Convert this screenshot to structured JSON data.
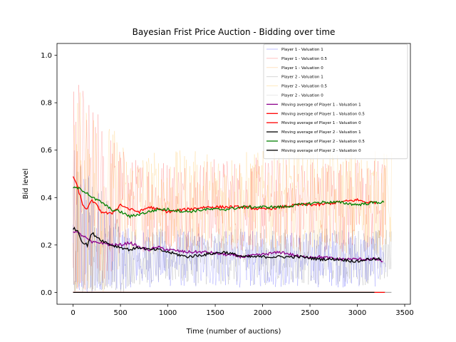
{
  "chart_data": {
    "type": "line",
    "title": "Bayesian Frist Price Auction - Bidding over time",
    "xlabel": "Time (number of auctions)",
    "ylabel": "Bid level",
    "xlim": [
      -170,
      3560
    ],
    "ylim": [
      -0.05,
      1.05
    ],
    "xticks": [
      0,
      500,
      1000,
      1500,
      2000,
      2500,
      3000,
      3500
    ],
    "yticks": [
      0.0,
      0.2,
      0.4,
      0.6,
      0.8,
      1.0
    ],
    "xtick_labels": [
      "0",
      "500",
      "1000",
      "1500",
      "2000",
      "2500",
      "3000",
      "3500"
    ],
    "ytick_labels": [
      "0.0",
      "0.2",
      "0.4",
      "0.6",
      "0.8",
      "1.0"
    ],
    "grid": false,
    "legend_position": "top-right",
    "series": [
      {
        "name": "Player 1 - Valuation 1",
        "color": "#0000ff",
        "kind": "raw",
        "center": 0.14,
        "spread": 0.12,
        "x_end": 3300
      },
      {
        "name": "Player 1 - Valuation 0.5",
        "color": "#ff0000",
        "kind": "raw",
        "center": 0.37,
        "spread": 0.2,
        "x_end": 3300
      },
      {
        "name": "Player 1 - Valuation 0",
        "color": "#ff8c00",
        "kind": "flat",
        "value": 0.0,
        "x_end": 3300
      },
      {
        "name": "Player 2 - Valuation 1",
        "color": "#555555",
        "kind": "raw",
        "center": 0.15,
        "spread": 0.12,
        "x_end": 3360
      },
      {
        "name": "Player 2 - Valuation 0.5",
        "color": "#ffa500",
        "kind": "raw",
        "center": 0.38,
        "spread": 0.22,
        "x_end": 3360
      },
      {
        "name": "Player 2 - Valuation 0",
        "color": "#a9a9a9",
        "kind": "flat",
        "value": 0.0,
        "x_end": 3360
      },
      {
        "name": "Moving average of Player 1 - Valuation 1",
        "color": "#8b008b",
        "kind": "avg",
        "x": [
          0,
          100,
          200,
          300,
          400,
          500,
          600,
          700,
          800,
          900,
          1000,
          1200,
          1400,
          1600,
          1800,
          2000,
          2200,
          2400,
          2600,
          2800,
          3000,
          3200,
          3270
        ],
        "y": [
          0.26,
          0.24,
          0.21,
          0.21,
          0.2,
          0.2,
          0.21,
          0.19,
          0.18,
          0.19,
          0.18,
          0.17,
          0.17,
          0.16,
          0.15,
          0.16,
          0.17,
          0.15,
          0.15,
          0.14,
          0.14,
          0.14,
          0.13
        ]
      },
      {
        "name": "Moving average of Player 1 -  Valuation 0.5",
        "color": "#ff0000",
        "kind": "avg",
        "x": [
          0,
          50,
          100,
          150,
          200,
          300,
          400,
          500,
          600,
          700,
          800,
          900,
          1000,
          1200,
          1400,
          1600,
          1800,
          2000,
          2200,
          2400,
          2600,
          2800,
          3000,
          3100,
          3200
        ],
        "y": [
          0.49,
          0.44,
          0.37,
          0.35,
          0.39,
          0.34,
          0.33,
          0.37,
          0.35,
          0.34,
          0.36,
          0.35,
          0.34,
          0.35,
          0.36,
          0.36,
          0.36,
          0.35,
          0.36,
          0.37,
          0.37,
          0.38,
          0.39,
          0.38,
          0.38
        ]
      },
      {
        "name": "Moving average of Player 1 -  Valuation 0",
        "color": "#ff0000",
        "kind": "flat",
        "value": 0.0,
        "x_end": 3290
      },
      {
        "name": "Moving average of Player 2 -  Valuation 1",
        "color": "#000000",
        "kind": "avg",
        "x": [
          0,
          50,
          100,
          150,
          200,
          300,
          400,
          500,
          600,
          700,
          800,
          900,
          1000,
          1200,
          1400,
          1600,
          1800,
          2000,
          2200,
          2400,
          2600,
          2800,
          3000,
          3100,
          3250
        ],
        "y": [
          0.27,
          0.26,
          0.21,
          0.2,
          0.25,
          0.22,
          0.2,
          0.19,
          0.18,
          0.19,
          0.18,
          0.18,
          0.17,
          0.15,
          0.16,
          0.17,
          0.15,
          0.15,
          0.15,
          0.15,
          0.14,
          0.14,
          0.13,
          0.14,
          0.14
        ]
      },
      {
        "name": "Moving average of Player 2 -  Valuation 0.5",
        "color": "#008000",
        "kind": "avg",
        "x": [
          0,
          50,
          100,
          150,
          200,
          300,
          400,
          500,
          600,
          700,
          800,
          900,
          1000,
          1200,
          1400,
          1600,
          1800,
          2000,
          2200,
          2400,
          2600,
          2800,
          3000,
          3200,
          3280
        ],
        "y": [
          0.44,
          0.44,
          0.43,
          0.42,
          0.4,
          0.38,
          0.35,
          0.34,
          0.32,
          0.33,
          0.34,
          0.35,
          0.35,
          0.34,
          0.35,
          0.35,
          0.36,
          0.36,
          0.36,
          0.37,
          0.38,
          0.38,
          0.37,
          0.38,
          0.38
        ]
      },
      {
        "name": "Moving average of Player 2 -  Valuation 0",
        "color": "#000000",
        "kind": "flat",
        "value": 0.0,
        "x_end": 3180
      }
    ]
  }
}
